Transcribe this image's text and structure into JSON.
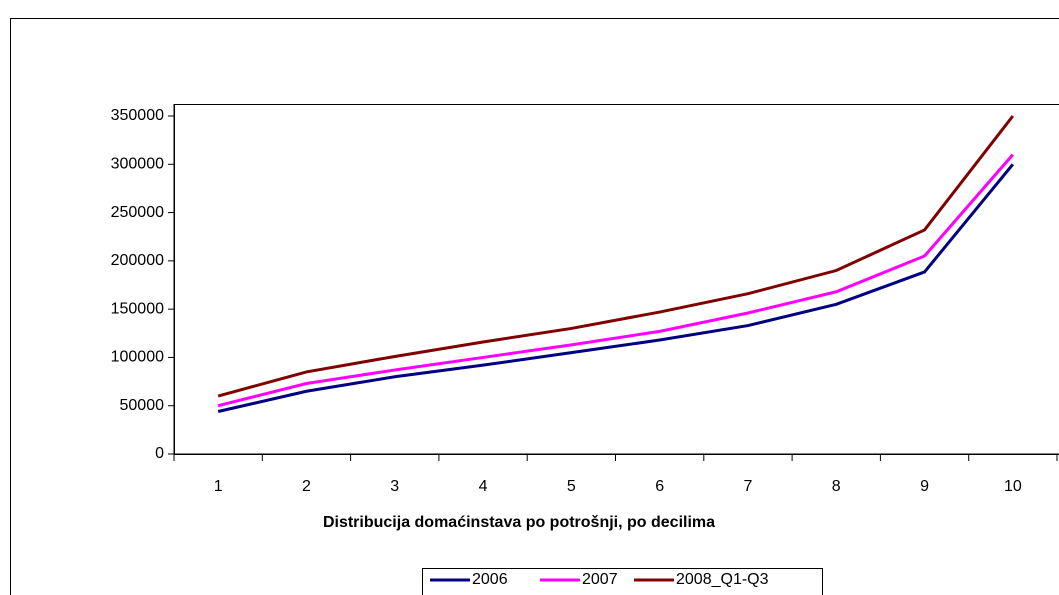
{
  "chart_data": {
    "type": "line",
    "x_label": "Distribucija domaćinstava po potrošnji, po decilima",
    "categories": [
      "1",
      "2",
      "3",
      "4",
      "5",
      "6",
      "7",
      "8",
      "9",
      "10"
    ],
    "series": [
      {
        "name": "2006",
        "color": "#000080",
        "values": [
          44000,
          65000,
          80000,
          92000,
          105000,
          118000,
          133000,
          155000,
          188500,
          300000
        ]
      },
      {
        "name": "2007",
        "color": "#ff00ff",
        "values": [
          50000,
          73000,
          87000,
          100000,
          113000,
          127000,
          146000,
          168000,
          205000,
          310000
        ]
      },
      {
        "name": "2008_Q1-Q3",
        "color": "#800000",
        "values": [
          60000,
          85000,
          101000,
          116000,
          130000,
          147000,
          166000,
          190000,
          232000,
          350000
        ]
      }
    ],
    "ylim": [
      0,
      350000
    ],
    "yticks": [
      0,
      50000,
      100000,
      150000,
      200000,
      250000,
      300000,
      350000
    ],
    "grid": false
  }
}
